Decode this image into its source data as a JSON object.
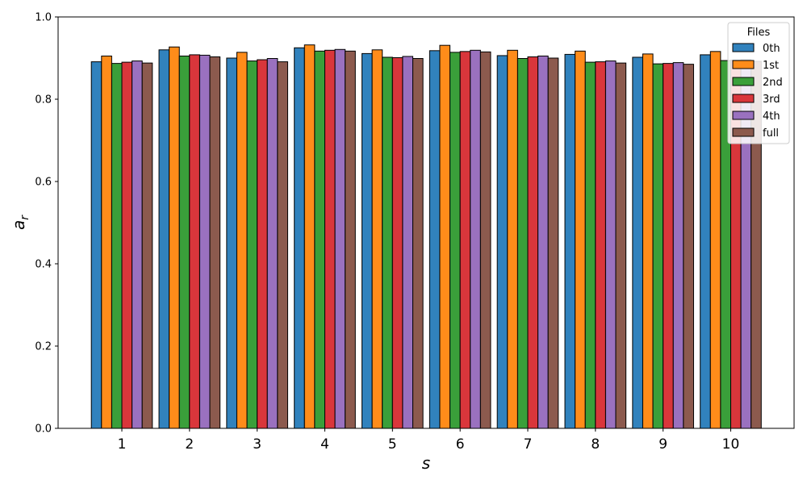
{
  "chart_data": {
    "type": "bar",
    "categories": [
      "1",
      "2",
      "3",
      "4",
      "5",
      "6",
      "7",
      "8",
      "9",
      "10"
    ],
    "series": [
      {
        "name": "0th",
        "color": "#3182bd",
        "values": [
          0.891,
          0.92,
          0.9,
          0.925,
          0.911,
          0.918,
          0.906,
          0.909,
          0.902,
          0.908
        ]
      },
      {
        "name": "1st",
        "color": "#ff8c1a",
        "values": [
          0.905,
          0.927,
          0.914,
          0.932,
          0.92,
          0.931,
          0.919,
          0.917,
          0.91,
          0.916
        ]
      },
      {
        "name": "2nd",
        "color": "#3a9f3a",
        "values": [
          0.887,
          0.905,
          0.893,
          0.917,
          0.902,
          0.914,
          0.899,
          0.89,
          0.886,
          0.894
        ]
      },
      {
        "name": "3rd",
        "color": "#d9363b",
        "values": [
          0.89,
          0.908,
          0.896,
          0.919,
          0.901,
          0.916,
          0.903,
          0.891,
          0.887,
          0.895
        ]
      },
      {
        "name": "4th",
        "color": "#9a71bf",
        "values": [
          0.893,
          0.907,
          0.899,
          0.921,
          0.904,
          0.919,
          0.905,
          0.893,
          0.889,
          0.896
        ]
      },
      {
        "name": "full",
        "color": "#8c5a4e",
        "values": [
          0.888,
          0.903,
          0.891,
          0.917,
          0.899,
          0.915,
          0.9,
          0.888,
          0.885,
          0.892
        ]
      }
    ],
    "xlabel": "s",
    "ylabel": "a",
    "ylabel_sub": "r",
    "ylim": [
      0,
      1.0
    ],
    "yticks": [
      "0.0",
      "0.2",
      "0.4",
      "0.6",
      "0.8",
      "1.0"
    ],
    "legend_title": "Files",
    "legend_position": "top-right",
    "grid": false
  }
}
